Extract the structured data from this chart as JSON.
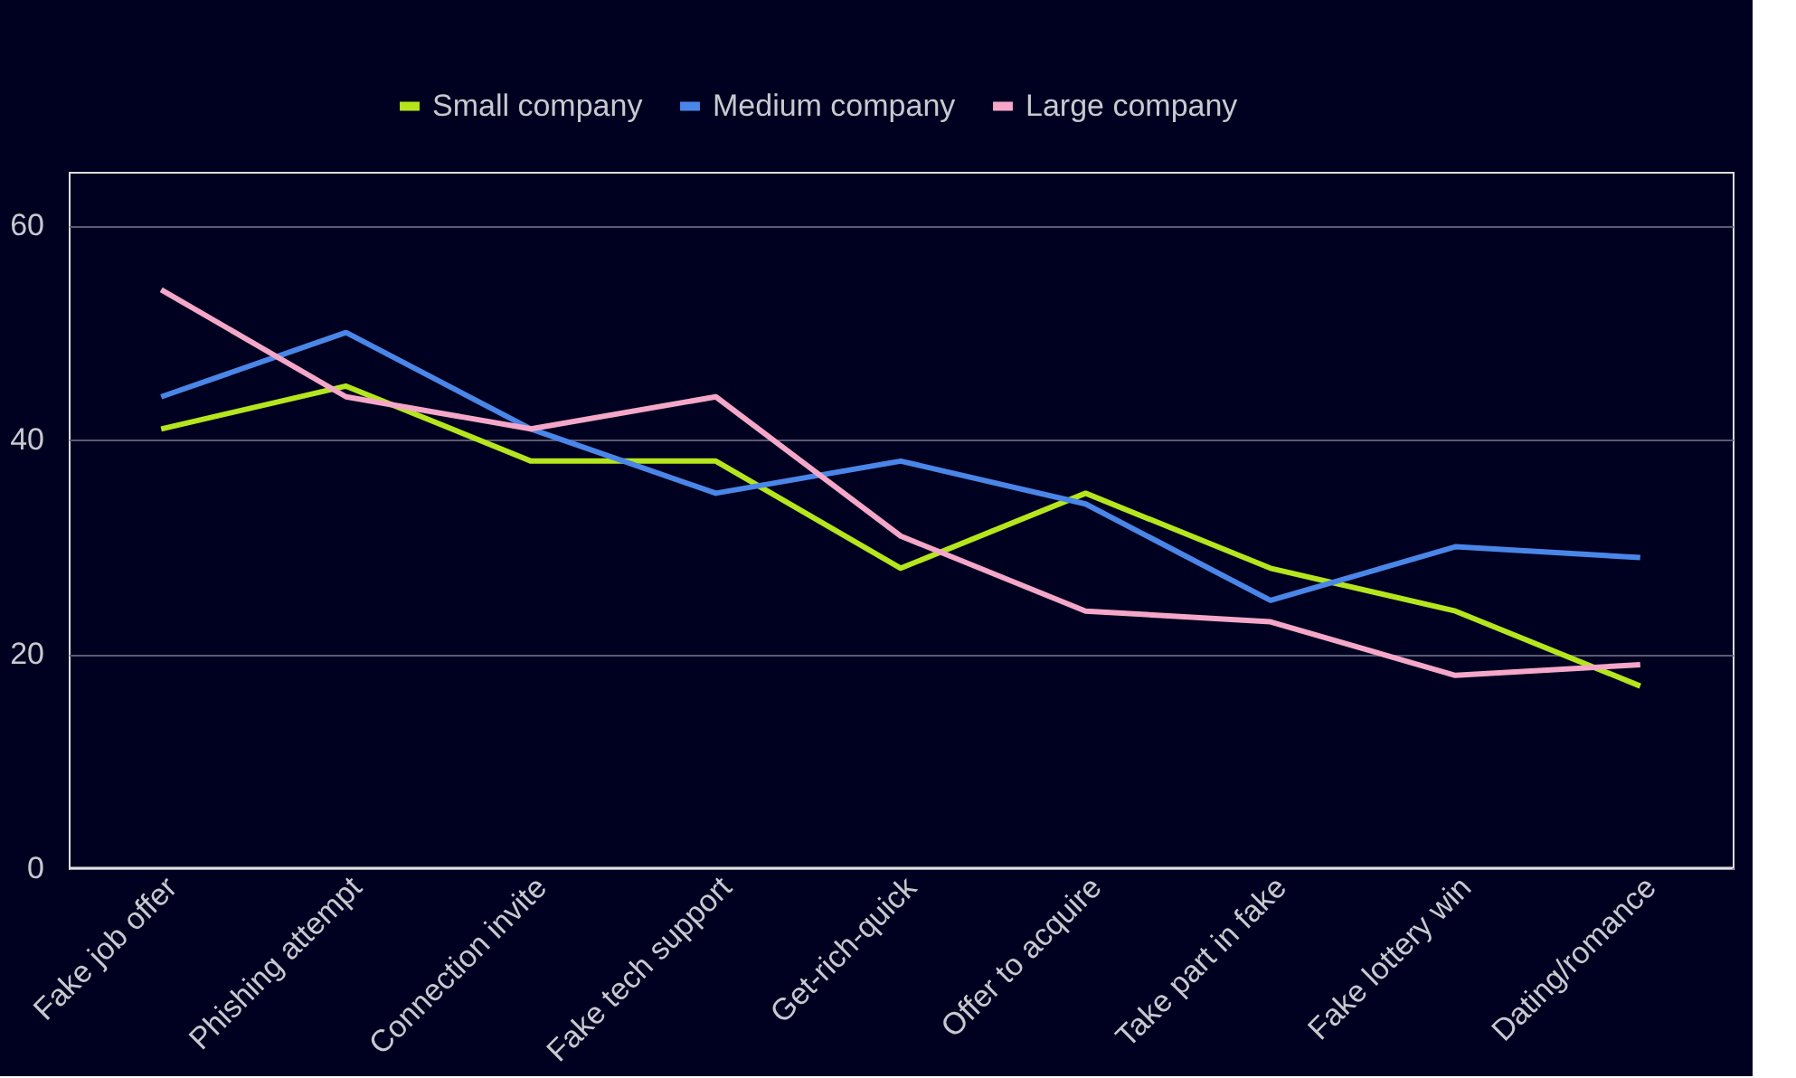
{
  "chart_data": {
    "type": "line",
    "categories": [
      "Fake job offer",
      "Phishing attempt",
      "Connection invite",
      "Fake tech support",
      "Get-rich-quick",
      "Offer to acquire",
      "Take part in fake",
      "Fake lottery win",
      "Dating/romance"
    ],
    "series": [
      {
        "name": "Small company",
        "color": "#b5e61d",
        "values": [
          41,
          45,
          38,
          38,
          28,
          35,
          28,
          24,
          17
        ]
      },
      {
        "name": "Medium company",
        "color": "#4a86e8",
        "values": [
          44,
          50,
          41,
          35,
          38,
          34,
          25,
          30,
          29
        ]
      },
      {
        "name": "Large company",
        "color": "#f4a7c8",
        "values": [
          54,
          44,
          41,
          44,
          31,
          24,
          23,
          18,
          19
        ]
      }
    ],
    "ylim": [
      0,
      65
    ],
    "yticks": [
      0,
      20,
      40,
      60
    ],
    "grid": "y",
    "legend": "top",
    "marker": "none",
    "line_style": "solid"
  }
}
